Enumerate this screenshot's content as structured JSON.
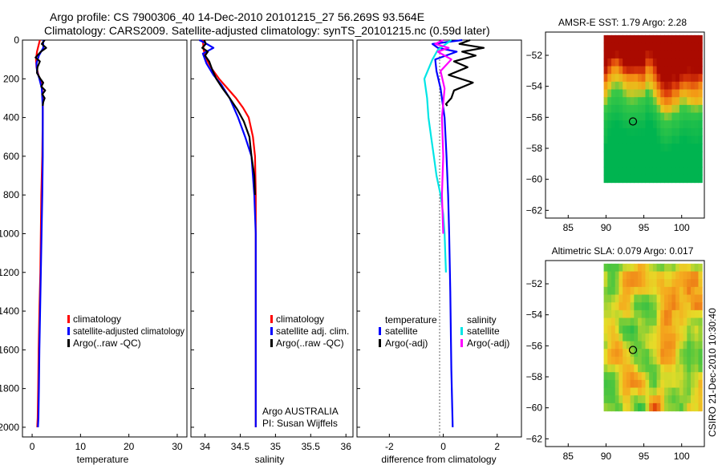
{
  "header": {
    "line1": "Argo profile: CS 7900306_40 14-Dec-2010 20101215_27 56.269S 93.564E",
    "line2": "Climatology: CARS2009. Satellite-adjusted climatology: synTS_20101215.nc (0.59d later)"
  },
  "colors": {
    "red": "#ff0000",
    "blue": "#0000ff",
    "black": "#000000",
    "cyan": "#00e5e5",
    "magenta": "#ff00ff"
  },
  "side_note": "CSIRO 21-Dec-2010 10:30:40",
  "chart_data": [
    {
      "id": "temperature",
      "type": "line",
      "xlabel": "temperature",
      "xlim": [
        -2,
        32
      ],
      "ylim": [
        2050,
        0
      ],
      "xticks": [
        0,
        10,
        20,
        30
      ],
      "yticks": [
        0,
        200,
        400,
        600,
        800,
        1000,
        1200,
        1400,
        1600,
        1800,
        2000
      ],
      "legend": {
        "placement": "bottom-left",
        "items": [
          "climatology",
          "satellite-adjusted climatology",
          "Argo(..raw -QC)"
        ]
      },
      "series": [
        {
          "name": "climatology",
          "color": "red",
          "x": [
            1.6,
            1.0,
            0.8,
            0.9,
            1.3,
            1.9,
            2.2,
            2.2,
            2.1,
            1.9,
            1.8,
            1.7,
            1.5,
            1.35,
            1.25,
            1.15,
            1.05
          ],
          "y": [
            0,
            60,
            100,
            140,
            180,
            220,
            280,
            400,
            600,
            800,
            1000,
            1200,
            1400,
            1600,
            1800,
            1950,
            2000
          ]
        },
        {
          "name": "satellite-adjusted climatology",
          "color": "blue",
          "x": [
            2.3,
            2.3,
            1.4,
            0.9,
            1.0,
            1.5,
            2.0,
            2.2,
            2.2,
            2.1,
            1.95,
            1.8,
            1.65,
            1.5,
            1.4,
            1.3,
            1.2
          ],
          "y": [
            0,
            40,
            80,
            120,
            160,
            200,
            250,
            350,
            600,
            800,
            1000,
            1200,
            1400,
            1600,
            1800,
            1950,
            2000
          ]
        },
        {
          "name": "Argo(..raw -QC)",
          "color": "black",
          "x": [
            2.6,
            2.0,
            2.9,
            1.8,
            0.7,
            1.6,
            1.1,
            1.0,
            1.7,
            2.3,
            1.9,
            2.7,
            2.1,
            2.6,
            2.3,
            2.2
          ],
          "y": [
            0,
            20,
            40,
            60,
            90,
            110,
            140,
            170,
            200,
            220,
            240,
            260,
            280,
            300,
            320,
            340
          ]
        }
      ]
    },
    {
      "id": "salinity",
      "type": "line",
      "xlabel": "salinity",
      "xlim": [
        33.8,
        36.1
      ],
      "ylim": [
        2050,
        0
      ],
      "xticks": [
        34,
        34.5,
        35,
        35.5,
        36
      ],
      "legend": {
        "placement": "bottom-center",
        "items": [
          "climatology",
          "satellite adj. clim.",
          "Argo(..raw -QC)"
        ]
      },
      "annotation": [
        "Argo AUSTRALIA",
        "PI: Susan Wijffels"
      ],
      "series": [
        {
          "name": "climatology",
          "color": "red",
          "x": [
            33.97,
            33.98,
            34.02,
            34.1,
            34.2,
            34.32,
            34.44,
            34.54,
            34.62,
            34.68,
            34.71,
            34.72,
            34.72,
            34.72,
            34.72,
            34.72,
            34.72
          ],
          "y": [
            0,
            50,
            100,
            150,
            200,
            250,
            300,
            350,
            400,
            500,
            600,
            800,
            1000,
            1200,
            1500,
            1800,
            2000
          ]
        },
        {
          "name": "satellite adj. clim.",
          "color": "blue",
          "x": [
            33.92,
            34.0,
            34.12,
            33.97,
            34.02,
            34.12,
            34.23,
            34.35,
            34.47,
            34.57,
            34.66,
            34.7,
            34.72,
            34.72,
            34.72,
            34.72
          ],
          "y": [
            0,
            15,
            40,
            70,
            120,
            180,
            230,
            300,
            400,
            500,
            600,
            800,
            1000,
            1200,
            1500,
            2000
          ]
        },
        {
          "name": "Argo(..raw -QC)",
          "color": "black",
          "x": [
            33.99,
            34.01,
            33.96,
            34.04,
            34.0,
            34.06,
            34.1,
            34.16,
            34.25,
            34.35,
            34.46,
            34.55,
            34.63,
            34.66,
            34.7,
            34.71
          ],
          "y": [
            0,
            20,
            40,
            60,
            80,
            110,
            150,
            200,
            250,
            300,
            360,
            420,
            500,
            600,
            700,
            800
          ]
        }
      ]
    },
    {
      "id": "difference",
      "type": "line",
      "xlabel": "difference from climatology",
      "xlim": [
        -3.2,
        2.9
      ],
      "ylim": [
        2050,
        0
      ],
      "xticks": [
        -2,
        0,
        2
      ],
      "legend": {
        "placement": "bottom-center",
        "groups": [
          "temperature",
          "salinity"
        ],
        "items": [
          "satellite",
          "Argo(-adj)",
          "satellite",
          "Argo(-adj)"
        ]
      },
      "series": [
        {
          "name": "temperature satellite",
          "color": "blue",
          "x": [
            0.7,
            -0.4,
            -0.2,
            0.5,
            -0.3,
            -0.25,
            -0.1,
            0.05,
            0.12,
            0.18,
            0.22,
            0.26,
            0.3,
            0.35
          ],
          "y": [
            0,
            20,
            40,
            60,
            100,
            160,
            250,
            400,
            600,
            800,
            1000,
            1300,
            1700,
            2000
          ]
        },
        {
          "name": "temperature Argo(-adj)",
          "color": "black",
          "x": [
            1.0,
            0.6,
            1.5,
            0.7,
            1.2,
            0.4,
            0.9,
            0.2,
            1.1,
            0.4,
            0.3,
            0.1,
            0.15
          ],
          "y": [
            0,
            20,
            40,
            60,
            80,
            110,
            140,
            180,
            220,
            260,
            300,
            330,
            340
          ]
        },
        {
          "name": "salinity satellite",
          "color": "cyan",
          "x": [
            0.3,
            -0.2,
            -0.4,
            -0.7,
            -0.6,
            -0.55,
            -0.45,
            -0.35,
            -0.25,
            -0.1,
            0.0,
            0.05,
            0.1
          ],
          "y": [
            0,
            50,
            100,
            200,
            300,
            400,
            500,
            600,
            700,
            800,
            900,
            1000,
            1200
          ]
        },
        {
          "name": "salinity Argo(-adj)",
          "color": "magenta",
          "x": [
            0.0,
            -0.3,
            0.2,
            -0.2,
            0.3,
            -0.1,
            0.05,
            -0.05,
            0.0,
            -0.05,
            0.0
          ],
          "y": [
            0,
            20,
            40,
            60,
            100,
            160,
            250,
            400,
            600,
            800,
            1000
          ]
        }
      ]
    },
    {
      "id": "sst_map",
      "type": "heatmap",
      "title": "AMSR-E SST: 1.79 Argo: 2.28",
      "xlim": [
        82,
        103
      ],
      "ylim": [
        -62.5,
        -50.5
      ],
      "xticks": [
        85,
        90,
        95,
        100
      ],
      "yticks": [
        -52,
        -54,
        -56,
        -58,
        -60,
        -62
      ],
      "data_extent": {
        "lon": [
          89.7,
          102.7
        ],
        "lat": [
          -60.2,
          -50.7
        ]
      },
      "argo_position": {
        "lon": 93.564,
        "lat": -56.269
      }
    },
    {
      "id": "sla_map",
      "type": "heatmap",
      "title": "Altimetric SLA: 0.079 Argo: 0.017",
      "xlim": [
        82,
        103
      ],
      "ylim": [
        -62.5,
        -50.5
      ],
      "xticks": [
        85,
        90,
        95,
        100
      ],
      "yticks": [
        -52,
        -54,
        -56,
        -58,
        -60,
        -62
      ],
      "data_extent": {
        "lon": [
          89.7,
          102.7
        ],
        "lat": [
          -60.2,
          -50.7
        ]
      },
      "argo_position": {
        "lon": 93.564,
        "lat": -56.269
      }
    }
  ]
}
